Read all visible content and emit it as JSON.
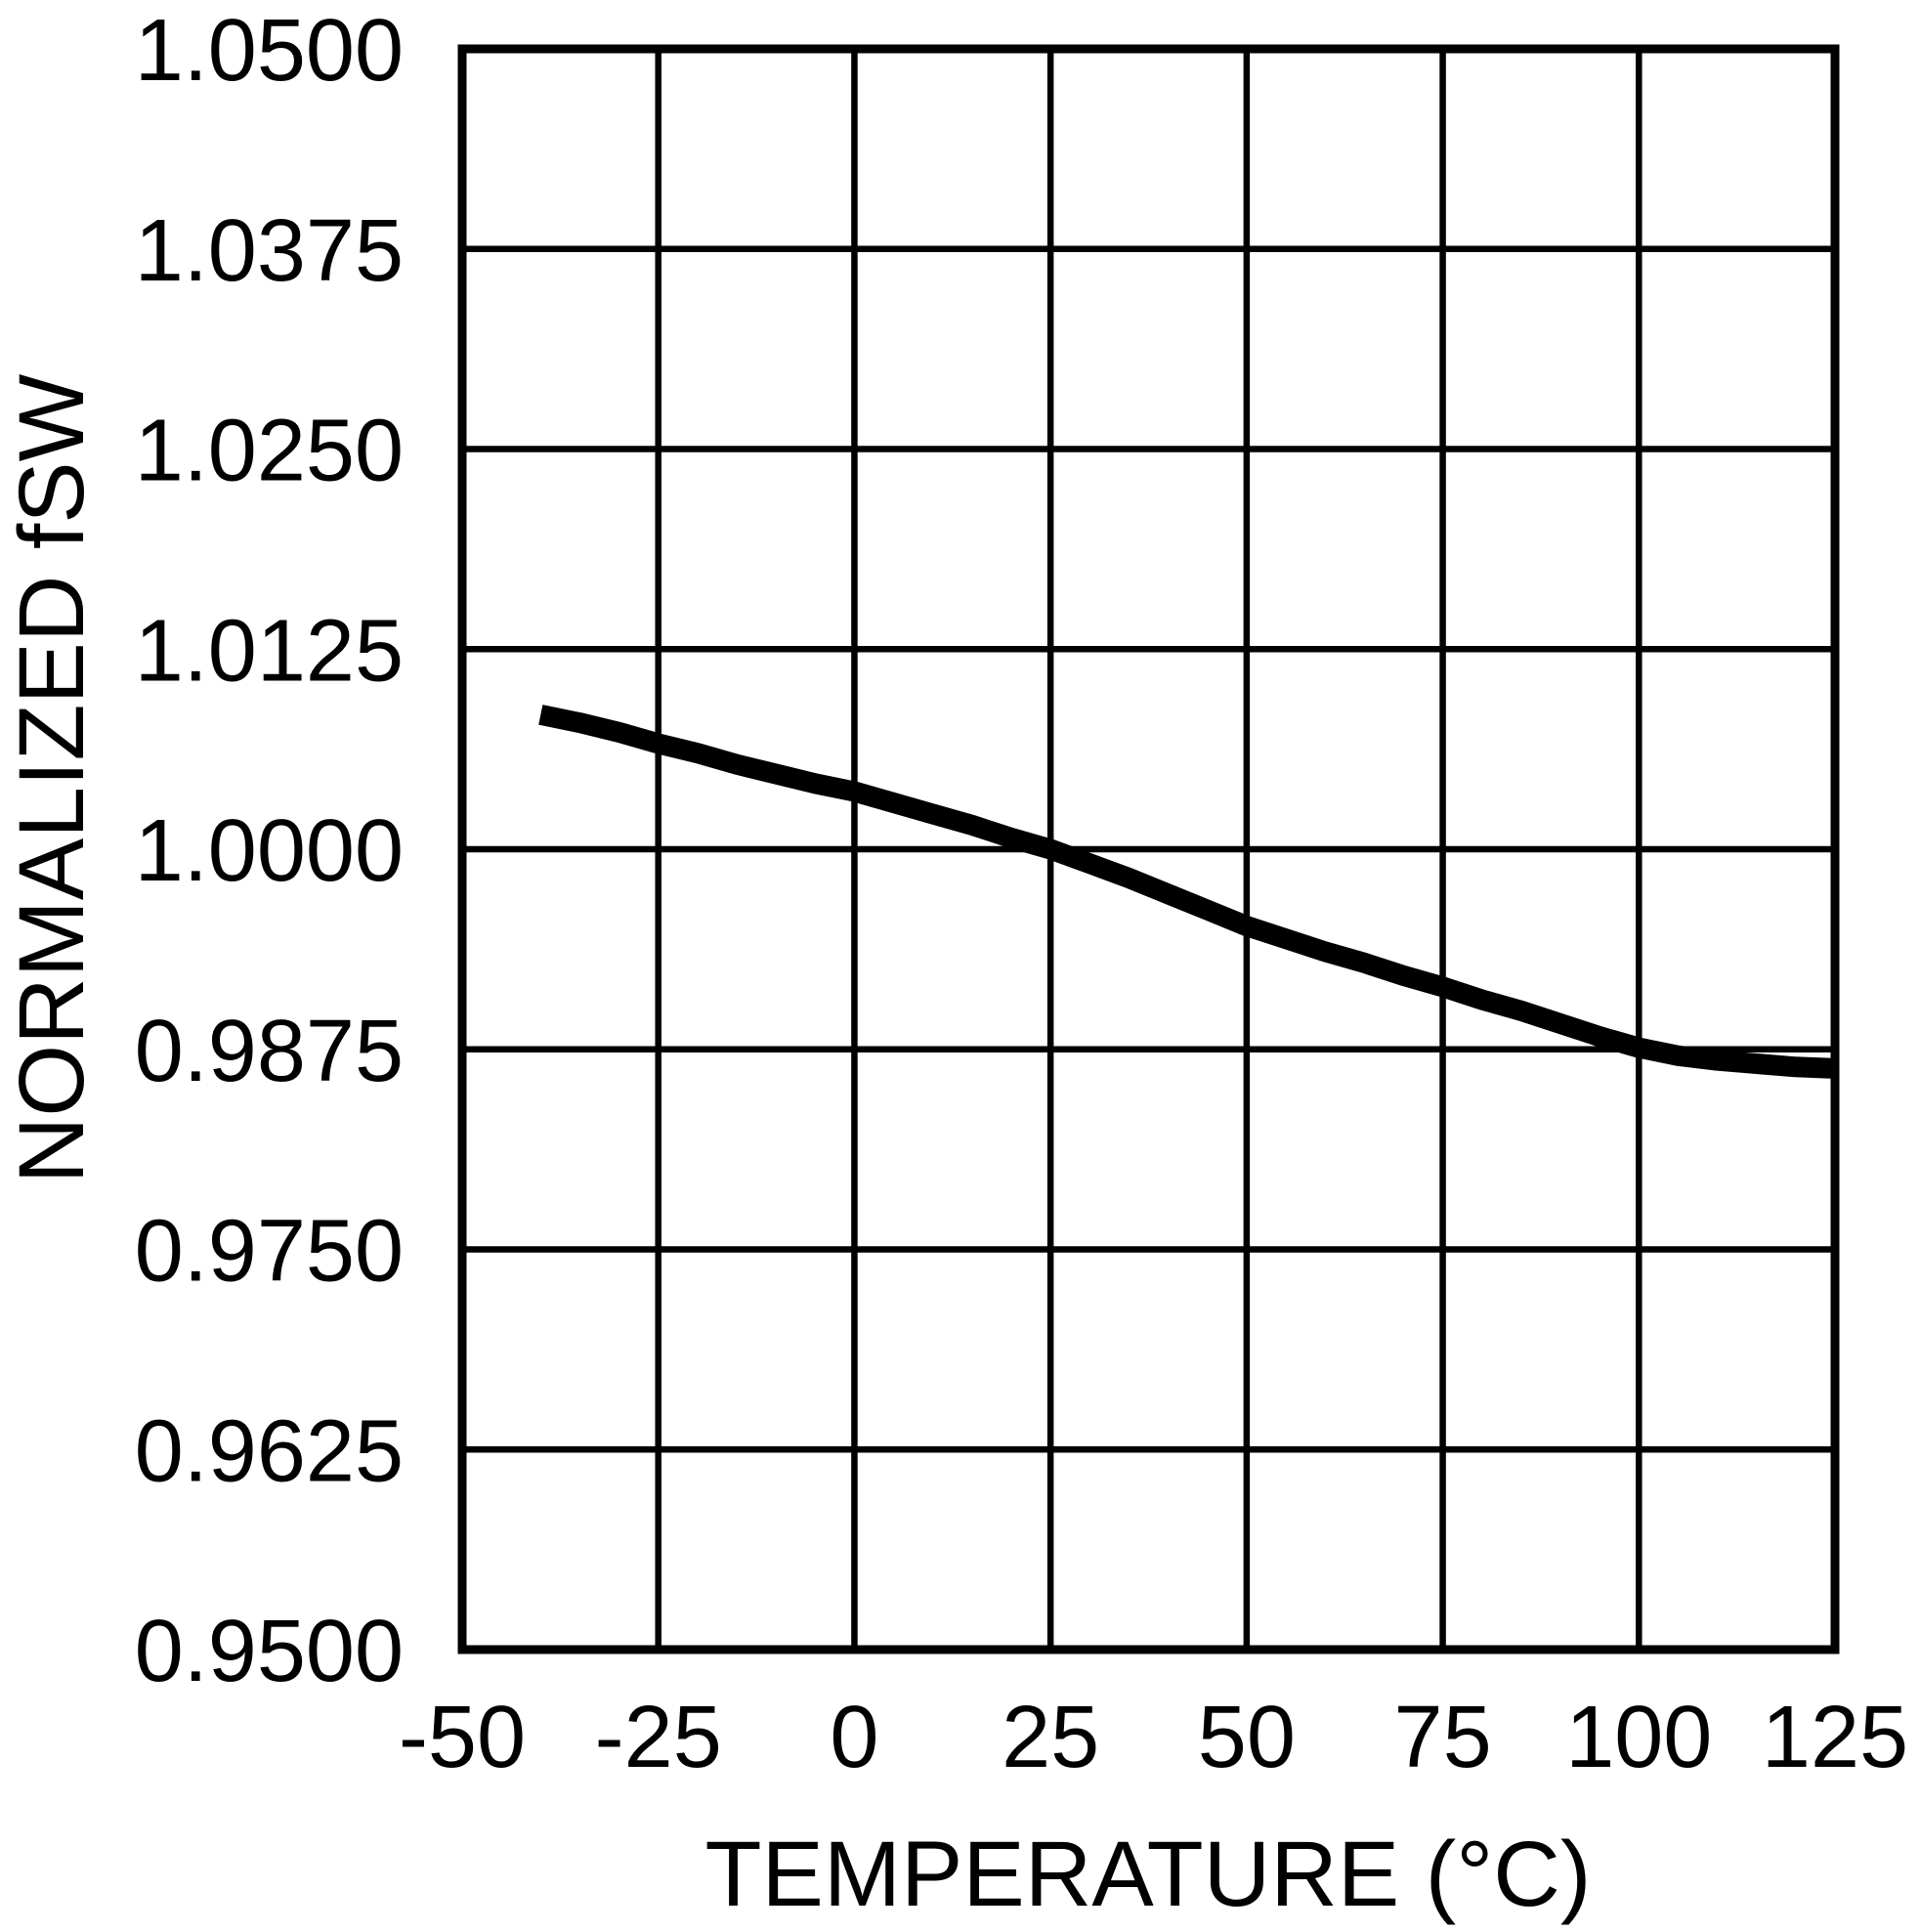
{
  "figure": {
    "background_color": "#ffffff",
    "curve_color": "#000000",
    "grid_color": "#000000",
    "border_color": "#000000",
    "text_color": "#000000"
  },
  "chart_data": {
    "type": "line",
    "title": "",
    "xlabel": "TEMPERATURE (°C)",
    "ylabel": "NORMALIZED fSW",
    "xlim": [
      -50,
      125
    ],
    "ylim": [
      0.95,
      1.05
    ],
    "x_tick_labels": [
      "-50",
      "-25",
      "0",
      "25",
      "50",
      "75",
      "100",
      "125"
    ],
    "x_tick_values": [
      -50,
      -25,
      0,
      25,
      50,
      75,
      100,
      125
    ],
    "y_tick_labels": [
      "1.0500",
      "1.0375",
      "1.0250",
      "1.0125",
      "1.0000",
      "0.9875",
      "0.9750",
      "0.9625",
      "0.9500"
    ],
    "y_tick_values": [
      1.05,
      1.0375,
      1.025,
      1.0125,
      1.0,
      0.9875,
      0.975,
      0.9625,
      0.95
    ],
    "grid": true,
    "legend_position": "none",
    "series": [
      {
        "name": "normalized-fsw",
        "x": [
          -40,
          -35,
          -30,
          -25,
          -20,
          -15,
          -10,
          -5,
          0,
          5,
          10,
          15,
          20,
          25,
          30,
          35,
          40,
          45,
          50,
          55,
          60,
          65,
          70,
          75,
          80,
          85,
          90,
          95,
          100,
          105,
          110,
          115,
          120,
          125
        ],
        "y": [
          1.0084,
          1.0079,
          1.0073,
          1.0066,
          1.006,
          1.0053,
          1.0047,
          1.0041,
          1.0036,
          1.0029,
          1.0022,
          1.0015,
          1.0007,
          1.0,
          0.9991,
          0.9982,
          0.9972,
          0.9962,
          0.9952,
          0.9944,
          0.9936,
          0.9929,
          0.9921,
          0.9914,
          0.9906,
          0.9899,
          0.9891,
          0.9883,
          0.9876,
          0.9871,
          0.9868,
          0.9866,
          0.9864,
          0.9863
        ]
      }
    ]
  }
}
